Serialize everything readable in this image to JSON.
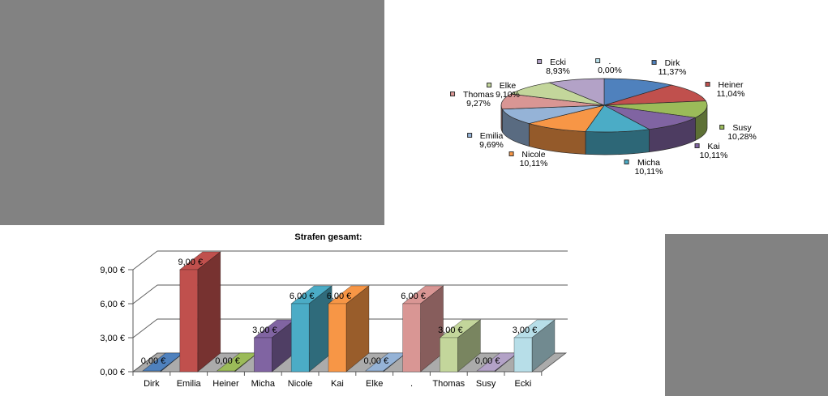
{
  "canvas": {
    "background": "#ffffff"
  },
  "placeholders": {
    "top_left": {
      "color": "#828282"
    },
    "bottom_right": {
      "color": "#828282"
    }
  },
  "chart_data": [
    {
      "type": "pie",
      "style": "3d",
      "title": "",
      "direction": "clockwise",
      "start_angle_deg": 0,
      "labels": [
        "Dirk",
        "Heiner",
        "Susy",
        "Kai",
        "Micha",
        "Nicole",
        "Emilia",
        "Thomas",
        "Elke",
        "Ecki",
        "."
      ],
      "values": [
        11.37,
        11.04,
        10.28,
        10.11,
        10.11,
        10.11,
        9.69,
        9.27,
        9.1,
        8.93,
        0.0
      ],
      "percent_labels": [
        "11,37%",
        "11,04%",
        "10,28%",
        "10,11%",
        "10,11%",
        "10,11%",
        "9,69%",
        "9,27%",
        "9,10%",
        "8,93%",
        "0,00%"
      ],
      "colors": [
        "#4F81BD",
        "#C0504D",
        "#9BBB59",
        "#8064A2",
        "#4BACC6",
        "#F79646",
        "#95B3D7",
        "#D99694",
        "#C3D69B",
        "#B3A2C7",
        "#B7DEE8"
      ],
      "legend": "callout-labels-with-square-markers"
    },
    {
      "type": "bar",
      "style": "3d",
      "title": "Strafen gesamt:",
      "categories": [
        "Dirk",
        "Emilia",
        "Heiner",
        "Micha",
        "Nicole",
        "Kai",
        "Elke",
        ".",
        "Thomas",
        "Susy",
        "Ecki"
      ],
      "values": [
        0,
        9,
        0,
        3,
        6,
        6,
        0,
        6,
        3,
        0,
        3
      ],
      "value_labels": [
        "0,00 €",
        "9,00 €",
        "0,00 €",
        "3,00 €",
        "6,00 €",
        "6,00 €",
        "0,00 €",
        "6,00 €",
        "3,00 €",
        "0,00 €",
        "3,00 €"
      ],
      "colors": [
        "#4F81BD",
        "#C0504D",
        "#9BBB59",
        "#8064A2",
        "#4BACC6",
        "#F79646",
        "#95B3D7",
        "#D99694",
        "#C3D69B",
        "#B3A2C7",
        "#B7DEE8"
      ],
      "ytick_values": [
        0,
        3,
        6,
        9
      ],
      "ytick_labels": [
        "0,00 €",
        "3,00 €",
        "6,00 €",
        "9,00 €"
      ],
      "ylim": [
        0,
        9
      ],
      "currency": "€",
      "grid": true,
      "legend": "none",
      "floor_color": "#ABABAB",
      "line_color": "#595959"
    }
  ]
}
